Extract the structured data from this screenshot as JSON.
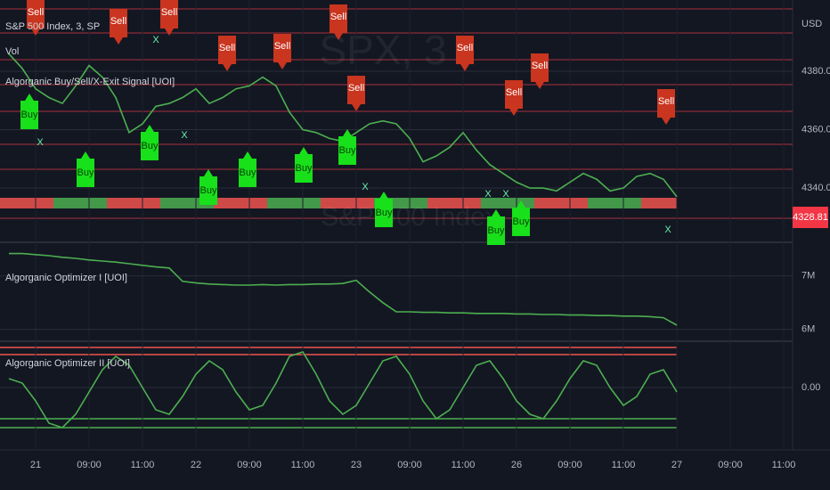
{
  "chart_data": [
    {
      "type": "line",
      "title": "S&P 500 Index, 3, SP",
      "subtitle": "Vol",
      "indicator": "Algorganic Buy/Sell/X-Exit Signal [UOI]",
      "watermark": [
        "SPX, 3",
        "S&P 500 Index"
      ],
      "axis_unit": "USD",
      "last_price": "4328.81",
      "color": "#4caf50",
      "categories": [
        null,
        null,
        "21",
        null,
        null,
        null,
        "09:00",
        null,
        null,
        null,
        "11:00",
        null,
        null,
        null,
        "22",
        null,
        null,
        null,
        "09:00",
        null,
        null,
        null,
        "11:00",
        null,
        null,
        null,
        "23",
        null,
        null,
        null,
        "09:00",
        null,
        null,
        null,
        "11:00",
        null,
        null,
        null,
        "26",
        null,
        null,
        null,
        "09:00",
        null,
        null,
        null,
        "11:00",
        null,
        null,
        null,
        "27",
        null,
        null,
        null,
        "09:00",
        null,
        null,
        null,
        "11:00",
        null,
        null
      ],
      "values": [
        4386,
        4381,
        4374,
        4371,
        4369,
        4375,
        4382,
        4378,
        4371,
        4359,
        4362,
        4368,
        4369,
        4371,
        4374,
        4369,
        4371,
        4374,
        4375,
        4378,
        4375,
        4366,
        4360,
        4359,
        4357,
        4356,
        4359,
        4362,
        4363,
        4362,
        4357,
        4349,
        4351,
        4354,
        4359,
        4353,
        4348,
        4345,
        4342,
        4340,
        4340,
        4339,
        4342,
        4345,
        4343,
        4339,
        4340,
        4344,
        4345,
        4343,
        4337,
        null,
        null,
        null,
        null,
        null,
        null,
        null,
        null,
        null,
        null
      ],
      "ylim": [
        4322,
        4402
      ],
      "yticks": [
        {
          "value": 4340,
          "label": "4340.00"
        },
        {
          "value": 4360,
          "label": "4360.00"
        },
        {
          "value": 4380,
          "label": "4380.00"
        }
      ],
      "annotations": [
        "Sell",
        "Sell",
        "Sell",
        "Sell",
        "Sell",
        "Sell",
        "Sell",
        "Sell",
        "Sell",
        "Sell",
        "Sell",
        "Buy",
        "Buy",
        "Buy",
        "Buy",
        "Buy",
        "Buy",
        "Buy",
        "Buy",
        "Buy",
        "Buy",
        "X",
        "X",
        "X",
        "X",
        "X",
        "X",
        "X"
      ]
    },
    {
      "type": "line",
      "title": "Algorganic Optimizer I [UOI]",
      "color": "#4caf50",
      "values": [
        7420000,
        7420000,
        7400000,
        7380000,
        7350000,
        7330000,
        7300000,
        7280000,
        7260000,
        7230000,
        7200000,
        7170000,
        7150000,
        6900000,
        6870000,
        6850000,
        6840000,
        6830000,
        6830000,
        6840000,
        6830000,
        6840000,
        6840000,
        6850000,
        6850000,
        6860000,
        6920000,
        6700000,
        6500000,
        6330000,
        6330000,
        6320000,
        6320000,
        6310000,
        6310000,
        6300000,
        6300000,
        6300000,
        6290000,
        6290000,
        6280000,
        6280000,
        6270000,
        6270000,
        6260000,
        6260000,
        6250000,
        6250000,
        6240000,
        6220000,
        6080000
      ],
      "ylim": [
        5830000,
        7580000
      ],
      "yticks": [
        {
          "value": 7000000,
          "label": "7M"
        },
        {
          "value": 6000000,
          "label": "6M"
        }
      ]
    },
    {
      "type": "line",
      "title": "Algorganic Optimizer II [UOI]",
      "color": "#4caf50",
      "values": [
        0.2,
        0.1,
        -0.3,
        -0.8,
        -0.9,
        -0.6,
        -0.1,
        0.4,
        0.7,
        0.5,
        0,
        -0.5,
        -0.6,
        -0.2,
        0.3,
        0.6,
        0.4,
        -0.1,
        -0.5,
        -0.4,
        0.1,
        0.7,
        0.8,
        0.3,
        -0.3,
        -0.6,
        -0.4,
        0.1,
        0.6,
        0.7,
        0.3,
        -0.3,
        -0.7,
        -0.5,
        0,
        0.5,
        0.6,
        0.2,
        -0.3,
        -0.6,
        -0.7,
        -0.3,
        0.2,
        0.6,
        0.5,
        0,
        -0.4,
        -0.2,
        0.3,
        0.4,
        -0.1
      ],
      "ylim": [
        -1,
        1
      ],
      "yticks": [
        {
          "value": 0,
          "label": "0.00"
        }
      ]
    }
  ]
}
